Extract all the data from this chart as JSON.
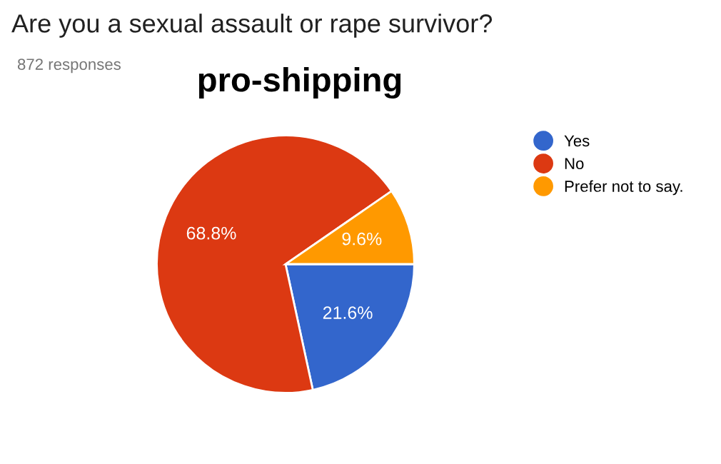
{
  "chart_data": {
    "type": "pie",
    "title": "Are you a sexual assault or rape survivor?",
    "subtitle": "872 responses",
    "annotations": [
      "pro-shipping"
    ],
    "categories": [
      "Yes",
      "No",
      "Prefer not to say."
    ],
    "values": [
      21.6,
      68.8,
      9.6
    ],
    "colors": [
      "#3366cc",
      "#dc3912",
      "#ff9900"
    ],
    "value_labels": [
      "21.6%",
      "68.8%",
      "9.6%"
    ],
    "legend": "right"
  }
}
